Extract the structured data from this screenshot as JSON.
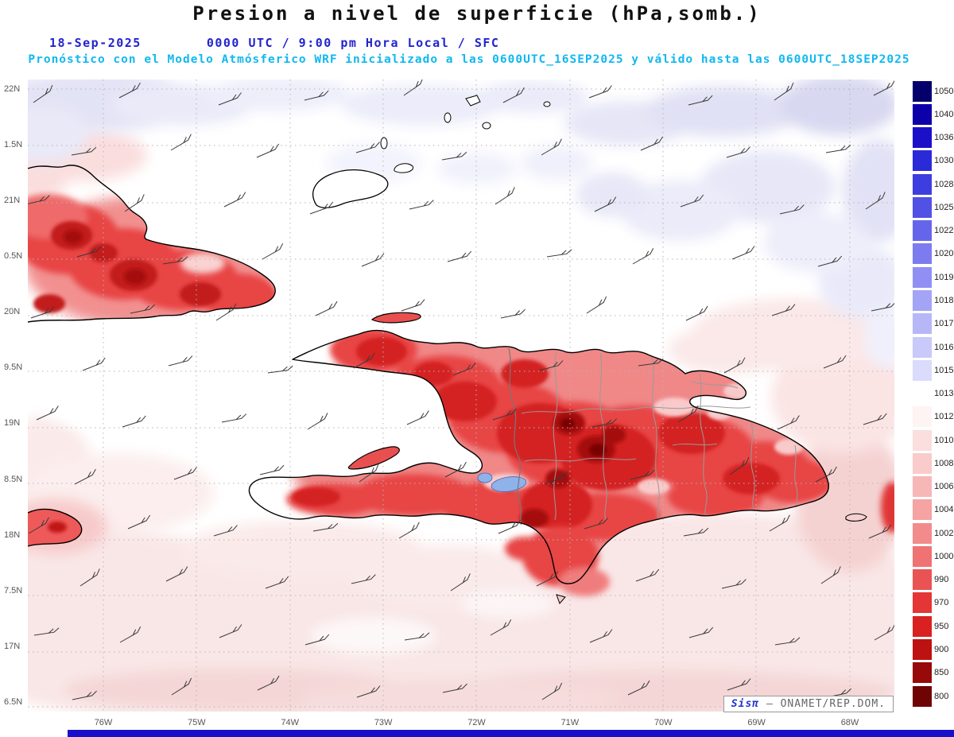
{
  "header": {
    "title": "Presion a nivel de superficie (hPa,somb.)",
    "date": "18-Sep-2025",
    "time_line": "0000 UTC / 9:00 pm Hora Local / SFC",
    "forecast_line": "Pronóstico con el Modelo Atmósferico WRF inicializado a las 0600UTC_16SEP2025 y válido hasta las  0600UTC_18SEP2025"
  },
  "map": {
    "lat_labels": [
      "22N",
      "1.5N",
      "21N",
      "0.5N",
      "20N",
      "9.5N",
      "19N",
      "8.5N",
      "18N",
      "7.5N",
      "17N",
      "6.5N"
    ],
    "lon_labels": [
      "76W",
      "75W",
      "74W",
      "73W",
      "72W",
      "71W",
      "70W",
      "69W",
      "68W"
    ]
  },
  "colorbar": {
    "unit": "hPa",
    "entries": [
      {
        "value": "1050",
        "color": "#04006b"
      },
      {
        "value": "1040",
        "color": "#0c00a8"
      },
      {
        "value": "1036",
        "color": "#1b10c8"
      },
      {
        "value": "1030",
        "color": "#2a2ad8"
      },
      {
        "value": "1028",
        "color": "#3d3de0"
      },
      {
        "value": "1025",
        "color": "#5151e6"
      },
      {
        "value": "1022",
        "color": "#6565ec"
      },
      {
        "value": "1020",
        "color": "#7c7cf0"
      },
      {
        "value": "1019",
        "color": "#9090f4"
      },
      {
        "value": "1018",
        "color": "#a4a4f6"
      },
      {
        "value": "1017",
        "color": "#b7b7f8"
      },
      {
        "value": "1016",
        "color": "#c9c9fa"
      },
      {
        "value": "1015",
        "color": "#dbdbfc"
      },
      {
        "value": "1013",
        "color": "#ffffff"
      },
      {
        "value": "1012",
        "color": "#fef4f4"
      },
      {
        "value": "1010",
        "color": "#fbdede"
      },
      {
        "value": "1008",
        "color": "#f9cbcb"
      },
      {
        "value": "1006",
        "color": "#f7b7b7"
      },
      {
        "value": "1004",
        "color": "#f5a3a3"
      },
      {
        "value": "1002",
        "color": "#f28c8c"
      },
      {
        "value": "1000",
        "color": "#ef7373"
      },
      {
        "value": "990",
        "color": "#ea5353"
      },
      {
        "value": "970",
        "color": "#e43636"
      },
      {
        "value": "950",
        "color": "#d92121"
      },
      {
        "value": "900",
        "color": "#bd1212"
      },
      {
        "value": "850",
        "color": "#980909"
      },
      {
        "value": "800",
        "color": "#6e0404"
      }
    ]
  },
  "watermark": {
    "brand": "Sisπ",
    "separator": "—",
    "org": "ONAMET/REP.DOM."
  },
  "colors": {
    "date_blue": "#2323cf",
    "forecast_cyan": "#10b8ef",
    "bottom_bar": "#1a10cc"
  }
}
